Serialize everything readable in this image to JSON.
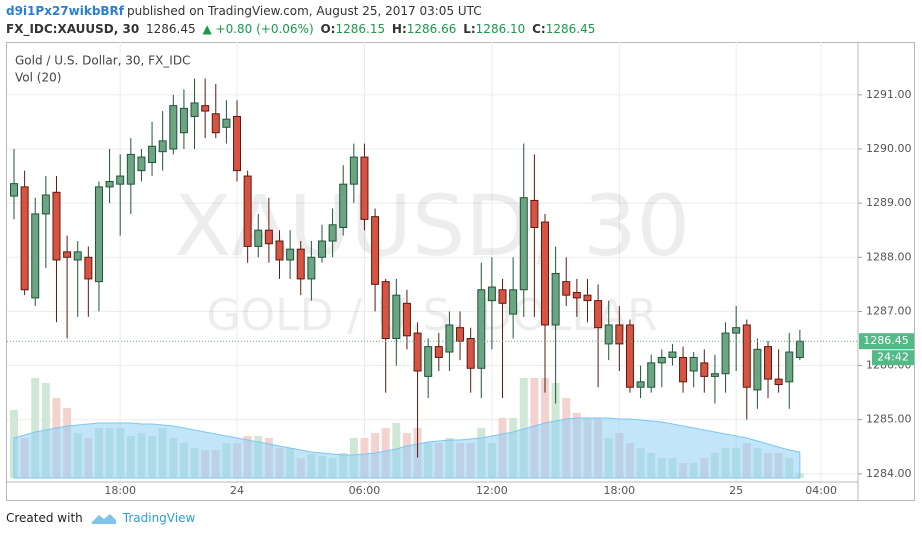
{
  "header": {
    "author": "d9i1Px27wikbBRf",
    "published": "published on TradingView.com, August 25, 2017 03:05 UTC",
    "symbol": "FX_IDC:XAUUSD, 30",
    "price": "1286.45",
    "change": "▲ +0.80 (+0.06%)",
    "ohlc": [
      {
        "label": "O:",
        "value": "1286.15"
      },
      {
        "label": "H:",
        "value": "1286.66"
      },
      {
        "label": "L:",
        "value": "1286.10"
      },
      {
        "label": "C:",
        "value": "1286.45"
      }
    ]
  },
  "footer": {
    "created": "Created with",
    "brand": "TradingView"
  },
  "chart_data": {
    "type": "candlestick",
    "title": "Gold / U.S. Dollar, 30, FX_IDC",
    "volume_label": "Vol (20)",
    "watermark": "XAUUSD, 30",
    "watermark_subtitle": "GOLD / U.S. DOLLAR",
    "categories": [
      null,
      null,
      null,
      null,
      null,
      null,
      null,
      null,
      null,
      null,
      "18:00",
      null,
      null,
      null,
      null,
      null,
      null,
      null,
      null,
      null,
      null,
      "24",
      null,
      null,
      null,
      null,
      null,
      null,
      null,
      null,
      null,
      null,
      null,
      "06:00",
      null,
      null,
      null,
      null,
      null,
      null,
      null,
      null,
      null,
      null,
      null,
      "12:00",
      null,
      null,
      null,
      null,
      null,
      null,
      null,
      null,
      null,
      null,
      null,
      "18:00",
      null,
      null,
      null,
      null,
      null,
      null,
      null,
      null,
      null,
      null,
      "25",
      null,
      null,
      null,
      null,
      null,
      null,
      null,
      "04:00"
    ],
    "open": [
      1289.13,
      1289.3,
      1287.25,
      1288.8,
      1289.2,
      1288.1,
      1287.95,
      1288.0,
      1287.55,
      1289.3,
      1289.35,
      1289.35,
      1289.6,
      1289.75,
      1289.95,
      1290.0,
      1290.3,
      1290.6,
      1290.8,
      1290.65,
      1290.4,
      1290.6,
      1289.5,
      1288.2,
      1288.5,
      1288.3,
      1287.95,
      1288.15,
      1287.6,
      1288.0,
      1288.3,
      1288.55,
      1289.35,
      1289.85,
      1288.75,
      1287.55,
      1286.5,
      1287.15,
      1286.6,
      1285.8,
      1286.35,
      1286.25,
      1286.7,
      1286.5,
      1285.95,
      1287.2,
      1287.4,
      1286.95,
      1287.4,
      1289.05,
      1288.65,
      1286.75,
      1287.55,
      1287.35,
      1287.3,
      1287.2,
      1286.4,
      1286.75,
      1286.75,
      1285.6,
      1285.6,
      1286.05,
      1286.15,
      1286.15,
      1285.9,
      1286.05,
      1285.8,
      1285.85,
      1286.6,
      1286.75,
      1285.55,
      1286.35,
      1285.75,
      1285.7,
      1286.15,
      null,
      null
    ],
    "high": [
      1290.0,
      1289.6,
      1289.1,
      1289.5,
      1289.5,
      1288.4,
      1288.3,
      1288.2,
      1289.4,
      1290.0,
      1289.9,
      1290.2,
      1290.0,
      1290.5,
      1290.7,
      1291.0,
      1291.1,
      1291.3,
      1291.3,
      1291.2,
      1290.9,
      1290.9,
      1289.6,
      1288.8,
      1289.1,
      1288.5,
      1288.5,
      1288.3,
      1288.3,
      1288.6,
      1288.9,
      1289.7,
      1290.1,
      1290.1,
      1288.9,
      1287.6,
      1287.6,
      1287.4,
      1286.8,
      1286.5,
      1286.6,
      1287.0,
      1287.0,
      1286.7,
      1287.9,
      1288.0,
      1287.6,
      1288.0,
      1290.1,
      1289.9,
      1288.8,
      1288.2,
      1288.0,
      1287.6,
      1287.6,
      1287.5,
      1287.2,
      1287.1,
      1286.85,
      1286.0,
      1286.2,
      1286.3,
      1286.4,
      1286.35,
      1286.25,
      1286.3,
      1286.2,
      1286.8,
      1287.1,
      1286.85,
      1286.5,
      1286.45,
      1286.3,
      1286.6,
      1286.66,
      null,
      null
    ],
    "low": [
      1288.7,
      1287.3,
      1287.1,
      1287.8,
      1286.8,
      1286.5,
      1286.9,
      1286.9,
      1287.0,
      1289.0,
      1288.4,
      1288.8,
      1289.4,
      1289.5,
      1289.6,
      1289.9,
      1290.0,
      1290.0,
      1290.2,
      1290.2,
      1290.1,
      1289.4,
      1287.9,
      1288.0,
      1287.9,
      1287.6,
      1287.6,
      1287.3,
      1287.2,
      1287.9,
      1288.0,
      1288.4,
      1289.0,
      1288.5,
      1287.0,
      1285.5,
      1286.0,
      1286.3,
      1284.3,
      1285.4,
      1285.9,
      1285.9,
      1286.1,
      1285.5,
      1285.4,
      1286.3,
      1285.4,
      1286.5,
      1286.9,
      1286.9,
      1285.5,
      1285.3,
      1287.1,
      1286.9,
      1286.8,
      1285.6,
      1286.1,
      1285.9,
      1285.5,
      1285.4,
      1285.5,
      1285.6,
      1286.0,
      1285.5,
      1285.6,
      1285.5,
      1285.3,
      1285.5,
      1285.9,
      1285.0,
      1285.2,
      1285.4,
      1285.5,
      1285.2,
      1286.1,
      null,
      null
    ],
    "close": [
      1289.36,
      1287.4,
      1288.8,
      1289.15,
      1287.95,
      1288.0,
      1288.1,
      1287.6,
      1289.3,
      1289.4,
      1289.5,
      1289.9,
      1289.85,
      1290.05,
      1290.15,
      1290.8,
      1290.75,
      1290.85,
      1290.7,
      1290.3,
      1290.55,
      1289.6,
      1288.2,
      1288.5,
      1288.25,
      1287.95,
      1288.15,
      1287.6,
      1288.0,
      1288.3,
      1288.6,
      1289.35,
      1289.85,
      1288.7,
      1287.5,
      1286.5,
      1287.3,
      1286.55,
      1285.9,
      1286.35,
      1286.15,
      1286.75,
      1286.45,
      1285.95,
      1287.4,
      1287.45,
      1287.15,
      1287.4,
      1289.1,
      1288.55,
      1286.75,
      1287.7,
      1287.3,
      1287.25,
      1287.2,
      1286.7,
      1286.75,
      1286.4,
      1285.6,
      1285.7,
      1286.05,
      1286.15,
      1286.25,
      1285.7,
      1286.15,
      1285.8,
      1285.85,
      1286.6,
      1286.7,
      1285.6,
      1286.3,
      1285.75,
      1285.65,
      1286.25,
      1286.45,
      null,
      null
    ],
    "volume": [
      68,
      40,
      100,
      95,
      80,
      70,
      45,
      40,
      50,
      50,
      50,
      42,
      45,
      42,
      50,
      40,
      35,
      30,
      28,
      28,
      35,
      35,
      42,
      42,
      40,
      30,
      30,
      20,
      24,
      22,
      20,
      25,
      40,
      40,
      45,
      50,
      55,
      45,
      50,
      35,
      35,
      40,
      35,
      35,
      50,
      35,
      60,
      60,
      100,
      100,
      100,
      95,
      80,
      65,
      60,
      60,
      40,
      45,
      35,
      30,
      25,
      20,
      20,
      15,
      15,
      20,
      25,
      30,
      30,
      35,
      30,
      25,
      25,
      20,
      5,
      null,
      null
    ],
    "volume_ma": [
      40,
      43,
      46,
      48,
      50,
      52,
      53,
      54,
      55,
      55,
      55,
      55,
      54,
      54,
      53,
      52,
      50,
      48,
      46,
      44,
      42,
      40,
      38,
      36,
      34,
      32,
      30,
      28,
      26,
      25,
      24,
      23,
      23,
      24,
      25,
      27,
      29,
      32,
      34,
      36,
      37,
      38,
      38,
      39,
      40,
      42,
      44,
      46,
      49,
      52,
      55,
      57,
      59,
      60,
      60,
      60,
      60,
      59,
      59,
      58,
      57,
      56,
      54,
      52,
      50,
      48,
      46,
      44,
      42,
      40,
      37,
      34,
      31,
      28,
      26,
      null,
      null
    ],
    "ylim": [
      1283.85,
      1291.92
    ],
    "yticks": [
      {
        "value": 1284,
        "label": "1284.00"
      },
      {
        "value": 1285,
        "label": "1285.00"
      },
      {
        "value": 1286,
        "label": "1286.00"
      },
      {
        "value": 1287,
        "label": "1287.00"
      },
      {
        "value": 1288,
        "label": "1288.00"
      },
      {
        "value": 1289,
        "label": "1289.00"
      },
      {
        "value": 1290,
        "label": "1290.00"
      },
      {
        "value": 1291,
        "label": "1291.00"
      }
    ],
    "last_price": {
      "value": 1286.45,
      "label": "1286.45"
    },
    "countdown": "24:42",
    "grid": true,
    "up_color": "#6ba583",
    "up_border": "#225437",
    "down_color": "#d75442",
    "down_border": "#5b1a13",
    "volume_up_color": "#cfe8d5",
    "volume_down_color": "#f2d3cf",
    "volume_ma_color": "#8fd0f5"
  }
}
